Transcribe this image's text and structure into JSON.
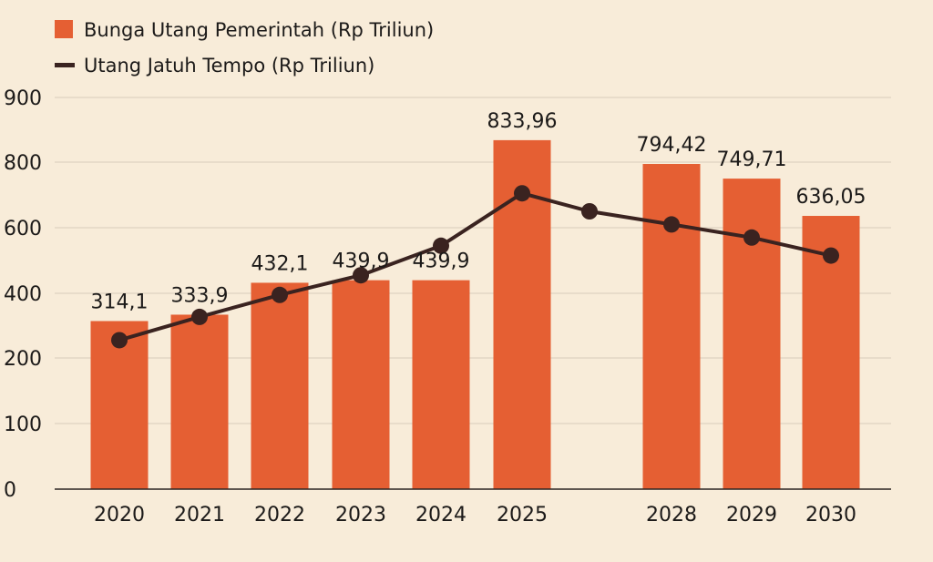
{
  "chart_data": {
    "type": "bar",
    "categories": [
      "2020",
      "2021",
      "2022",
      "2023",
      "2024",
      "2025",
      "2028",
      "2029",
      "2030"
    ],
    "series": [
      {
        "name": "Bunga Utang Pemerintah (Rp Triliun)",
        "type": "bar",
        "values": [
          314.1,
          333.9,
          432.1,
          439.9,
          439.9,
          833.96,
          794.42,
          749.71,
          636.05
        ],
        "data_labels": [
          "314,1",
          "333,9",
          "432,1",
          "439,9",
          "439,9",
          "833,96",
          "794,42",
          "749,71",
          "636,05"
        ],
        "color": "#e55f33"
      },
      {
        "name": "Utang Jatuh Tempo (Rp Triliun)",
        "type": "line",
        "values": [
          255,
          327,
          395,
          455,
          545,
          705,
          650,
          610,
          570,
          515
        ],
        "x": [
          "2020",
          "2021",
          "2022",
          "2023",
          "2024",
          "2025",
          "",
          "2028",
          "2029",
          "2030"
        ],
        "color": "#3a2320"
      }
    ],
    "yticks": [
      "0",
      "100",
      "200",
      "400",
      "600",
      "800",
      "900"
    ],
    "legend_position": "top-left",
    "grid": true,
    "xlabel": "",
    "ylabel": ""
  }
}
